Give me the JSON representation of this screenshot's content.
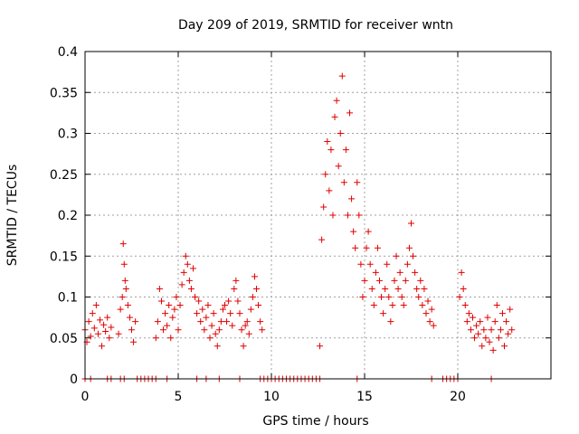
{
  "chart_data": {
    "type": "scatter",
    "title": "Day 209 of 2019, SRMTID for receiver wntn",
    "xlabel": "GPS time / hours",
    "ylabel": "SRMTID / TECUs",
    "xlim": [
      0,
      25
    ],
    "ylim": [
      0,
      0.4
    ],
    "grid": true,
    "marker": "+",
    "colors": {
      "series": "#e00000",
      "grid": "#a0a0a0",
      "axis": "#000000"
    },
    "x_ticks": [
      {
        "value": 0,
        "label": "0"
      },
      {
        "value": 5,
        "label": "5"
      },
      {
        "value": 10,
        "label": "10"
      },
      {
        "value": 15,
        "label": "15"
      },
      {
        "value": 20,
        "label": "20"
      }
    ],
    "y_ticks": [
      {
        "value": 0,
        "label": "0"
      },
      {
        "value": 0.05,
        "label": "0.05"
      },
      {
        "value": 0.1,
        "label": "0.1"
      },
      {
        "value": 0.15,
        "label": "0.15"
      },
      {
        "value": 0.2,
        "label": "0.2"
      },
      {
        "value": 0.25,
        "label": "0.25"
      },
      {
        "value": 0.3,
        "label": "0.3"
      },
      {
        "value": 0.35,
        "label": "0.35"
      },
      {
        "value": 0.4,
        "label": "0.4"
      }
    ],
    "series": [
      {
        "name": "SRMTID",
        "points": [
          [
            0.0,
            0.06
          ],
          [
            0.1,
            0.045
          ],
          [
            0.2,
            0.07
          ],
          [
            0.3,
            0.052
          ],
          [
            0.4,
            0.08
          ],
          [
            0.5,
            0.062
          ],
          [
            0.6,
            0.09
          ],
          [
            0.7,
            0.055
          ],
          [
            0.8,
            0.072
          ],
          [
            0.9,
            0.04
          ],
          [
            1.0,
            0.066
          ],
          [
            1.1,
            0.058
          ],
          [
            1.2,
            0.075
          ],
          [
            1.3,
            0.05
          ],
          [
            1.4,
            0.063
          ],
          [
            1.8,
            0.055
          ],
          [
            1.9,
            0.085
          ],
          [
            2.0,
            0.1
          ],
          [
            2.05,
            0.165
          ],
          [
            2.1,
            0.14
          ],
          [
            2.15,
            0.12
          ],
          [
            2.2,
            0.11
          ],
          [
            2.3,
            0.09
          ],
          [
            2.4,
            0.075
          ],
          [
            2.5,
            0.06
          ],
          [
            2.6,
            0.045
          ],
          [
            2.7,
            0.07
          ],
          [
            3.8,
            0.05
          ],
          [
            3.9,
            0.07
          ],
          [
            4.0,
            0.11
          ],
          [
            4.1,
            0.095
          ],
          [
            4.2,
            0.06
          ],
          [
            4.3,
            0.08
          ],
          [
            4.4,
            0.065
          ],
          [
            4.5,
            0.09
          ],
          [
            4.6,
            0.05
          ],
          [
            4.7,
            0.075
          ],
          [
            4.8,
            0.085
          ],
          [
            4.9,
            0.1
          ],
          [
            5.0,
            0.06
          ],
          [
            5.1,
            0.09
          ],
          [
            5.2,
            0.115
          ],
          [
            5.3,
            0.13
          ],
          [
            5.4,
            0.15
          ],
          [
            5.5,
            0.14
          ],
          [
            5.6,
            0.12
          ],
          [
            5.7,
            0.11
          ],
          [
            5.8,
            0.135
          ],
          [
            5.9,
            0.1
          ],
          [
            6.0,
            0.08
          ],
          [
            6.1,
            0.095
          ],
          [
            6.2,
            0.07
          ],
          [
            6.3,
            0.085
          ],
          [
            6.4,
            0.06
          ],
          [
            6.5,
            0.075
          ],
          [
            6.6,
            0.09
          ],
          [
            6.7,
            0.05
          ],
          [
            6.8,
            0.065
          ],
          [
            6.9,
            0.08
          ],
          [
            7.0,
            0.055
          ],
          [
            7.1,
            0.04
          ],
          [
            7.2,
            0.06
          ],
          [
            7.3,
            0.07
          ],
          [
            7.4,
            0.085
          ],
          [
            7.5,
            0.09
          ],
          [
            7.6,
            0.07
          ],
          [
            7.7,
            0.095
          ],
          [
            7.8,
            0.08
          ],
          [
            7.9,
            0.065
          ],
          [
            8.0,
            0.11
          ],
          [
            8.1,
            0.12
          ],
          [
            8.2,
            0.095
          ],
          [
            8.3,
            0.08
          ],
          [
            8.4,
            0.06
          ],
          [
            8.5,
            0.04
          ],
          [
            8.6,
            0.065
          ],
          [
            8.7,
            0.07
          ],
          [
            8.8,
            0.055
          ],
          [
            8.9,
            0.085
          ],
          [
            9.0,
            0.1
          ],
          [
            9.1,
            0.125
          ],
          [
            9.2,
            0.11
          ],
          [
            9.3,
            0.09
          ],
          [
            9.4,
            0.07
          ],
          [
            9.5,
            0.06
          ],
          [
            12.6,
            0.04
          ],
          [
            12.7,
            0.17
          ],
          [
            12.8,
            0.21
          ],
          [
            12.9,
            0.25
          ],
          [
            13.0,
            0.29
          ],
          [
            13.1,
            0.23
          ],
          [
            13.2,
            0.28
          ],
          [
            13.3,
            0.2
          ],
          [
            13.4,
            0.32
          ],
          [
            13.5,
            0.34
          ],
          [
            13.6,
            0.26
          ],
          [
            13.7,
            0.3
          ],
          [
            13.8,
            0.37
          ],
          [
            13.9,
            0.24
          ],
          [
            14.0,
            0.28
          ],
          [
            14.1,
            0.2
          ],
          [
            14.2,
            0.325
          ],
          [
            14.3,
            0.22
          ],
          [
            14.4,
            0.18
          ],
          [
            14.5,
            0.16
          ],
          [
            14.6,
            0.24
          ],
          [
            14.7,
            0.2
          ],
          [
            14.8,
            0.14
          ],
          [
            14.9,
            0.1
          ],
          [
            15.0,
            0.12
          ],
          [
            15.1,
            0.16
          ],
          [
            15.2,
            0.18
          ],
          [
            15.3,
            0.14
          ],
          [
            15.4,
            0.11
          ],
          [
            15.5,
            0.09
          ],
          [
            15.6,
            0.13
          ],
          [
            15.7,
            0.16
          ],
          [
            15.8,
            0.12
          ],
          [
            15.9,
            0.1
          ],
          [
            16.0,
            0.08
          ],
          [
            16.1,
            0.11
          ],
          [
            16.2,
            0.14
          ],
          [
            16.3,
            0.1
          ],
          [
            16.4,
            0.07
          ],
          [
            16.5,
            0.09
          ],
          [
            16.6,
            0.12
          ],
          [
            16.7,
            0.15
          ],
          [
            16.8,
            0.11
          ],
          [
            16.9,
            0.13
          ],
          [
            17.0,
            0.1
          ],
          [
            17.1,
            0.09
          ],
          [
            17.2,
            0.12
          ],
          [
            17.3,
            0.14
          ],
          [
            17.4,
            0.16
          ],
          [
            17.5,
            0.19
          ],
          [
            17.6,
            0.15
          ],
          [
            17.7,
            0.13
          ],
          [
            17.8,
            0.11
          ],
          [
            17.9,
            0.1
          ],
          [
            18.0,
            0.12
          ],
          [
            18.1,
            0.09
          ],
          [
            18.2,
            0.11
          ],
          [
            18.3,
            0.08
          ],
          [
            18.4,
            0.095
          ],
          [
            18.5,
            0.07
          ],
          [
            18.6,
            0.085
          ],
          [
            18.7,
            0.065
          ],
          [
            20.1,
            0.1
          ],
          [
            20.2,
            0.13
          ],
          [
            20.3,
            0.11
          ],
          [
            20.4,
            0.09
          ],
          [
            20.5,
            0.07
          ],
          [
            20.6,
            0.08
          ],
          [
            20.7,
            0.06
          ],
          [
            20.8,
            0.075
          ],
          [
            20.9,
            0.05
          ],
          [
            21.0,
            0.065
          ],
          [
            21.1,
            0.055
          ],
          [
            21.2,
            0.07
          ],
          [
            21.3,
            0.04
          ],
          [
            21.4,
            0.06
          ],
          [
            21.5,
            0.05
          ],
          [
            21.6,
            0.075
          ],
          [
            21.7,
            0.045
          ],
          [
            21.8,
            0.06
          ],
          [
            21.9,
            0.035
          ],
          [
            22.0,
            0.07
          ],
          [
            22.1,
            0.09
          ],
          [
            22.2,
            0.05
          ],
          [
            22.3,
            0.06
          ],
          [
            22.4,
            0.08
          ],
          [
            22.5,
            0.04
          ],
          [
            22.6,
            0.07
          ],
          [
            22.7,
            0.055
          ],
          [
            22.8,
            0.085
          ],
          [
            22.9,
            0.06
          ],
          [
            0.0,
            0.0
          ],
          [
            0.3,
            0.0
          ],
          [
            1.2,
            0.0
          ],
          [
            1.4,
            0.0
          ],
          [
            1.9,
            0.0
          ],
          [
            2.1,
            0.0
          ],
          [
            2.8,
            0.0
          ],
          [
            3.0,
            0.0
          ],
          [
            3.2,
            0.0
          ],
          [
            3.4,
            0.0
          ],
          [
            3.6,
            0.0
          ],
          [
            3.8,
            0.0
          ],
          [
            4.4,
            0.0
          ],
          [
            6.0,
            0.0
          ],
          [
            6.5,
            0.0
          ],
          [
            7.2,
            0.0
          ],
          [
            8.3,
            0.0
          ],
          [
            9.4,
            0.0
          ],
          [
            9.6,
            0.0
          ],
          [
            9.8,
            0.0
          ],
          [
            10.0,
            0.0
          ],
          [
            10.2,
            0.0
          ],
          [
            10.4,
            0.0
          ],
          [
            10.6,
            0.0
          ],
          [
            10.8,
            0.0
          ],
          [
            11.0,
            0.0
          ],
          [
            11.2,
            0.0
          ],
          [
            11.4,
            0.0
          ],
          [
            11.6,
            0.0
          ],
          [
            11.8,
            0.0
          ],
          [
            12.0,
            0.0
          ],
          [
            12.2,
            0.0
          ],
          [
            12.4,
            0.0
          ],
          [
            12.6,
            0.0
          ],
          [
            14.6,
            0.0
          ],
          [
            18.6,
            0.0
          ],
          [
            19.2,
            0.0
          ],
          [
            19.4,
            0.0
          ],
          [
            19.6,
            0.0
          ],
          [
            19.8,
            0.0
          ],
          [
            20.0,
            0.0
          ],
          [
            21.8,
            0.0
          ]
        ]
      }
    ]
  }
}
